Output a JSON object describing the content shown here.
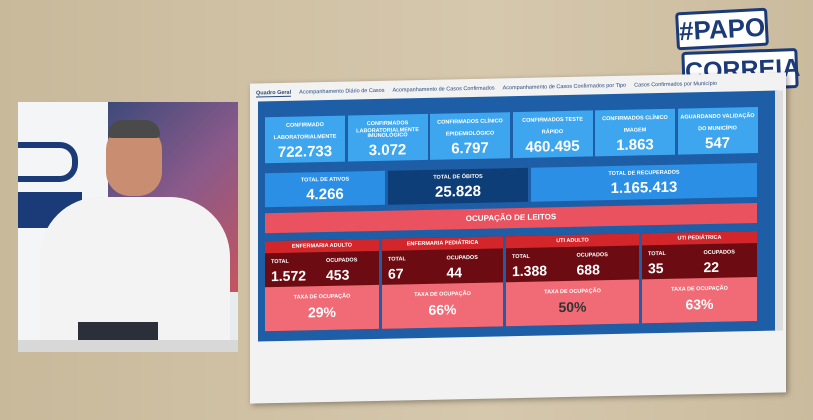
{
  "logo": {
    "line1": "#PAPO",
    "line2": "CORREIA"
  },
  "tabs": [
    "Quadro Geral",
    "Acompanhamento Diário de Casos",
    "Acompanhamento de Casos Confirmados",
    "Acompanhamento de Casos Confirmados por Tipo",
    "Casos Confirmados por Município"
  ],
  "confirmed": [
    {
      "label1": "CONFIRMADO",
      "label2": "LABORATORIALMENTE",
      "value": "722.733"
    },
    {
      "label1": "CONFIRMADOS LABORATORIALMENTE",
      "label2": "IMUNOLÓGICO",
      "value": "3.072"
    },
    {
      "label1": "CONFIRMADOS CLÍNICO",
      "label2": "EPIDEMIOLÓGICO",
      "value": "6.797"
    },
    {
      "label1": "CONFIRMADOS TESTE",
      "label2": "RÁPIDO",
      "value": "460.495"
    },
    {
      "label1": "CONFIRMADOS CLÍNICO",
      "label2": "IMAGEM",
      "value": "1.863"
    },
    {
      "label1": "AGUARDANDO VALIDAÇÃO",
      "label2": "DO MUNICÍPIO",
      "value": "547"
    }
  ],
  "totals": [
    {
      "label": "TOTAL DE ATIVOS",
      "value": "4.266"
    },
    {
      "label": "TOTAL DE ÓBITOS",
      "value": "25.828"
    },
    {
      "label": "TOTAL DE RECUPERADOS",
      "value": "1.165.413"
    }
  ],
  "occupancy": {
    "title": "OCUPAÇÃO DE LEITOS",
    "total_label": "TOTAL",
    "occupied_label": "OCUPADOS",
    "rate_label": "TAXA DE OCUPAÇÃO",
    "units": [
      {
        "name": "ENFERMARIA ADULTO",
        "total": "1.572",
        "occupied": "453",
        "rate": "29%"
      },
      {
        "name": "ENFERMARIA PEDIÁTRICA",
        "total": "67",
        "occupied": "44",
        "rate": "66%"
      },
      {
        "name": "UTI ADULTO",
        "total": "1.388",
        "occupied": "688",
        "rate": "50%"
      },
      {
        "name": "UTI PEDIÁTRICA",
        "total": "35",
        "occupied": "22",
        "rate": "63%"
      }
    ]
  }
}
